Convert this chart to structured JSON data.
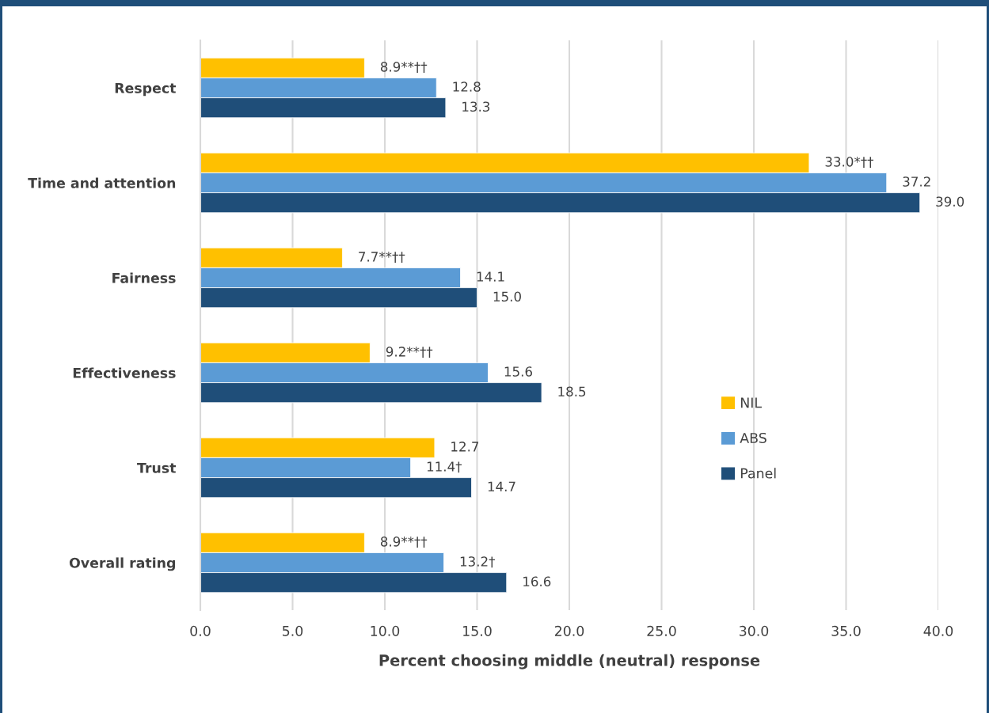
{
  "chart_data": {
    "type": "bar",
    "orientation": "horizontal",
    "xlabel": "Percent choosing middle (neutral) response",
    "categories": [
      "Respect",
      "Time and attention",
      "Fairness",
      "Effectiveness",
      "Trust",
      "Overall rating"
    ],
    "series": [
      {
        "name": "NIL",
        "color": "#ffc000",
        "values": [
          8.9,
          33.0,
          7.7,
          9.2,
          12.7,
          8.9
        ],
        "value_labels": [
          "8.9**††",
          "33.0*††",
          "7.7**††",
          "9.2**††",
          "12.7",
          "8.9**††"
        ]
      },
      {
        "name": "ABS",
        "color": "#5b9bd5",
        "values": [
          12.8,
          37.2,
          14.1,
          15.6,
          11.4,
          13.2
        ],
        "value_labels": [
          "12.8",
          "37.2",
          "14.1",
          "15.6",
          "11.4†",
          "13.2†"
        ]
      },
      {
        "name": "Panel",
        "color": "#1f4e79",
        "values": [
          13.3,
          39.0,
          15.0,
          18.5,
          14.7,
          16.6
        ],
        "value_labels": [
          "13.3",
          "39.0",
          "15.0",
          "18.5",
          "14.7",
          "16.6"
        ]
      }
    ],
    "xlim": [
      0,
      40
    ],
    "xticks": [
      {
        "value": 0,
        "label": "0.0"
      },
      {
        "value": 5,
        "label": "5.0"
      },
      {
        "value": 10,
        "label": "10.0"
      },
      {
        "value": 15,
        "label": "15.0"
      },
      {
        "value": 20,
        "label": "20.0"
      },
      {
        "value": 25,
        "label": "25.0"
      },
      {
        "value": 30,
        "label": "30.0"
      },
      {
        "value": 35,
        "label": "35.0"
      },
      {
        "value": 40,
        "label": "40.0"
      }
    ],
    "grid": "x",
    "legend": "right"
  }
}
